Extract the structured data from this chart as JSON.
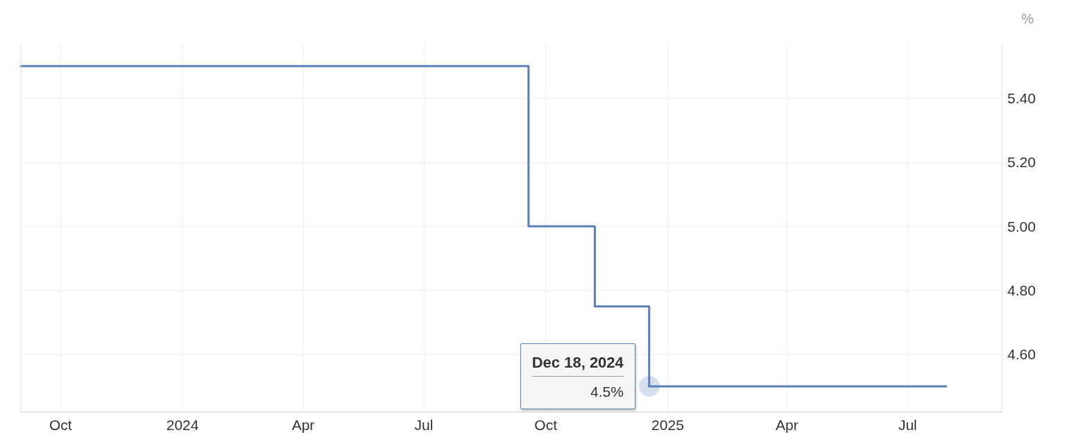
{
  "chart_data": {
    "type": "step",
    "ylabel": "%",
    "x": [
      "2023-09-01",
      "2024-09-18",
      "2024-11-07",
      "2024-12-18",
      "2025-07-30"
    ],
    "series": [
      {
        "color": "#5b7fbc",
        "values": [
          5.5,
          5.0,
          4.75,
          4.5,
          4.5
        ]
      }
    ],
    "xlim": [
      "2023-09-01",
      "2025-09-10"
    ],
    "xticks": [
      {
        "value": "2023-10-01",
        "label": "Oct"
      },
      {
        "value": "2024-01-01",
        "label": "2024"
      },
      {
        "value": "2024-04-01",
        "label": "Apr"
      },
      {
        "value": "2024-07-01",
        "label": "Jul"
      },
      {
        "value": "2024-10-01",
        "label": "Oct"
      },
      {
        "value": "2025-01-01",
        "label": "2025"
      },
      {
        "value": "2025-04-01",
        "label": "Apr"
      },
      {
        "value": "2025-07-01",
        "label": "Jul"
      }
    ],
    "ylim": [
      4.42,
      5.57
    ],
    "yticks": [
      {
        "value": 4.6,
        "label": "4.60"
      },
      {
        "value": 4.8,
        "label": "4.80"
      },
      {
        "value": 5.0,
        "label": "5.00"
      },
      {
        "value": 5.2,
        "label": "5.20"
      },
      {
        "value": 5.4,
        "label": "5.40"
      }
    ],
    "annotations": [
      {
        "text": "Dec 18, 2024",
        "x": "2024-12-18",
        "y": 4.5
      },
      {
        "text": "4.5%",
        "x": "2024-12-18",
        "y": 4.5
      }
    ],
    "grid": true,
    "marker": "none",
    "line_style": "solid"
  }
}
